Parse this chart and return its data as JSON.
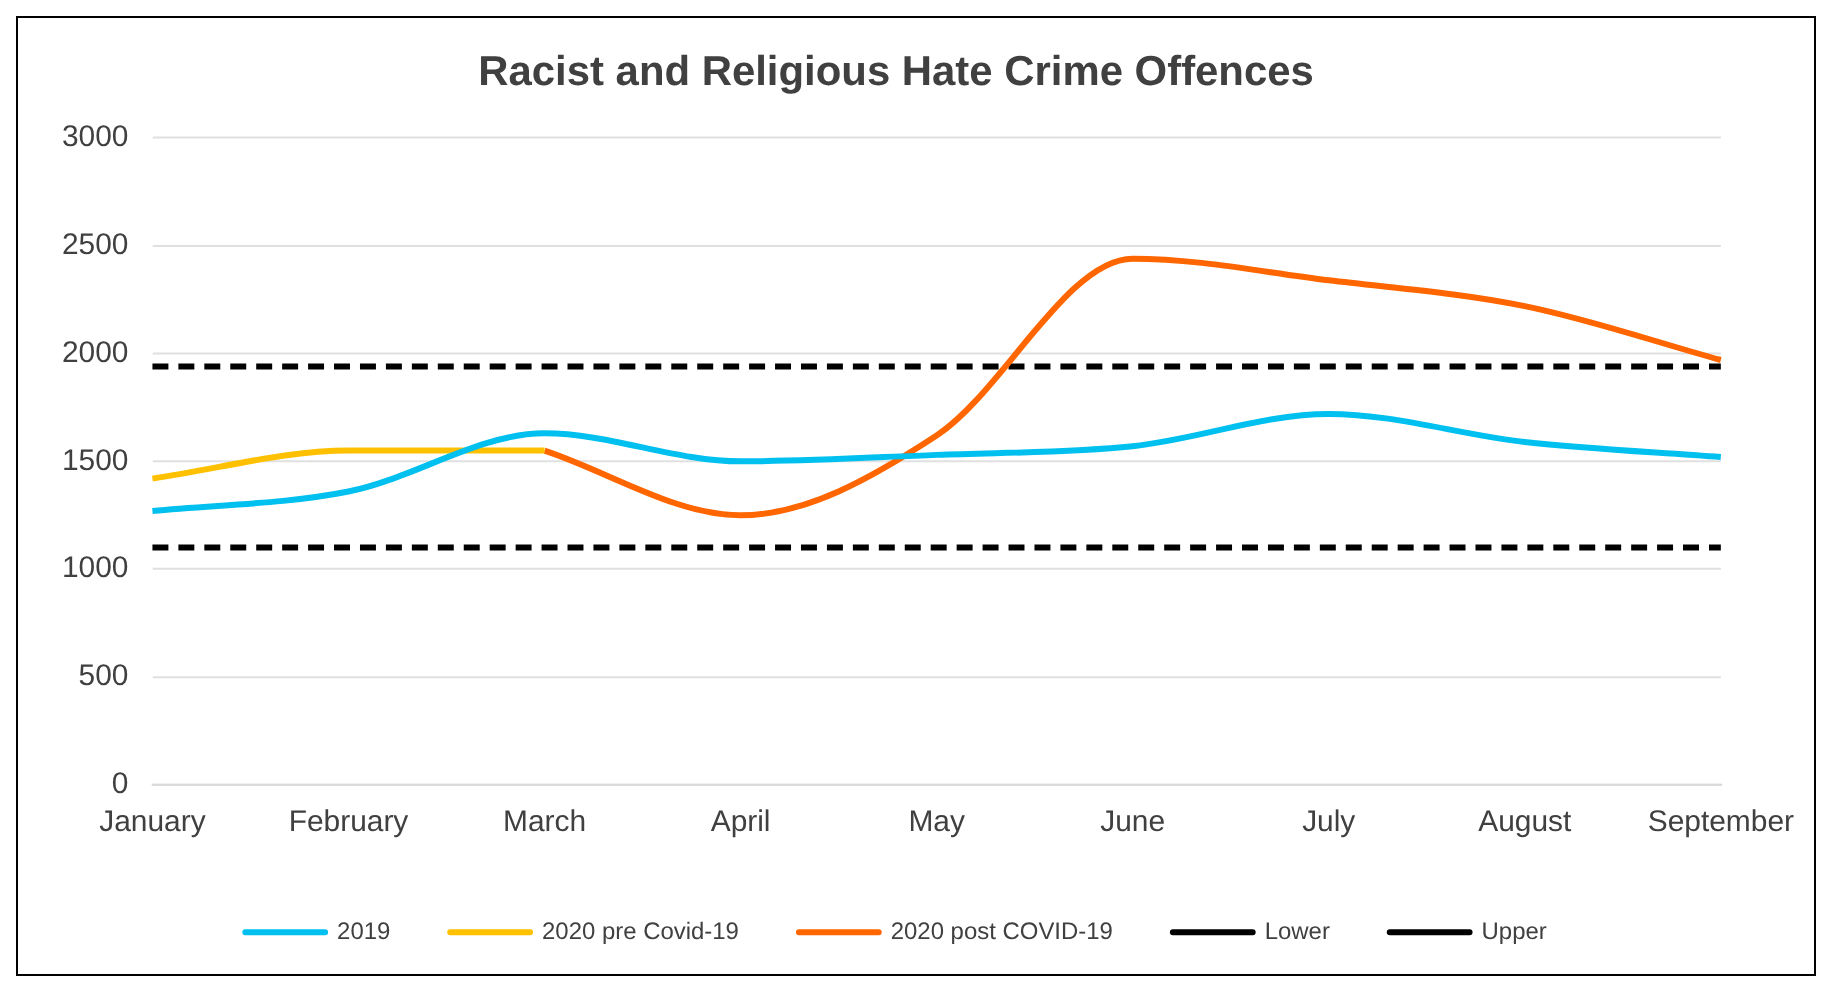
{
  "chart_data": {
    "type": "line",
    "title": "Racist and Religious Hate Crime Offences",
    "categories": [
      "January",
      "February",
      "March",
      "April",
      "May",
      "June",
      "July",
      "August",
      "September"
    ],
    "series": [
      {
        "name": "2019",
        "color": "#00c0f0",
        "values": [
          1270,
          1360,
          1630,
          1500,
          1530,
          1570,
          1720,
          1590,
          1520
        ]
      },
      {
        "name": "2020 pre Covid-19",
        "color": "#ffc000",
        "values": [
          1420,
          1550,
          1550,
          null,
          null,
          null,
          null,
          null,
          null
        ]
      },
      {
        "name": "2020 post COVID-19",
        "color": "#ff6600",
        "values": [
          null,
          null,
          1550,
          1250,
          1620,
          2440,
          2340,
          2220,
          1970
        ]
      },
      {
        "name": "Lower",
        "color": "#000000",
        "line_style": "dashed",
        "values": [
          1100,
          1100,
          1100,
          1100,
          1100,
          1100,
          1100,
          1100,
          1100
        ]
      },
      {
        "name": "Upper",
        "color": "#000000",
        "line_style": "dashed",
        "values": [
          1940,
          1940,
          1940,
          1940,
          1940,
          1940,
          1940,
          1940,
          1940
        ]
      }
    ],
    "ylim": [
      0,
      3000
    ],
    "yticks": [
      0,
      500,
      1000,
      1500,
      2000,
      2500,
      3000
    ],
    "grid": "y",
    "legend": "bottom",
    "marker": "none"
  }
}
